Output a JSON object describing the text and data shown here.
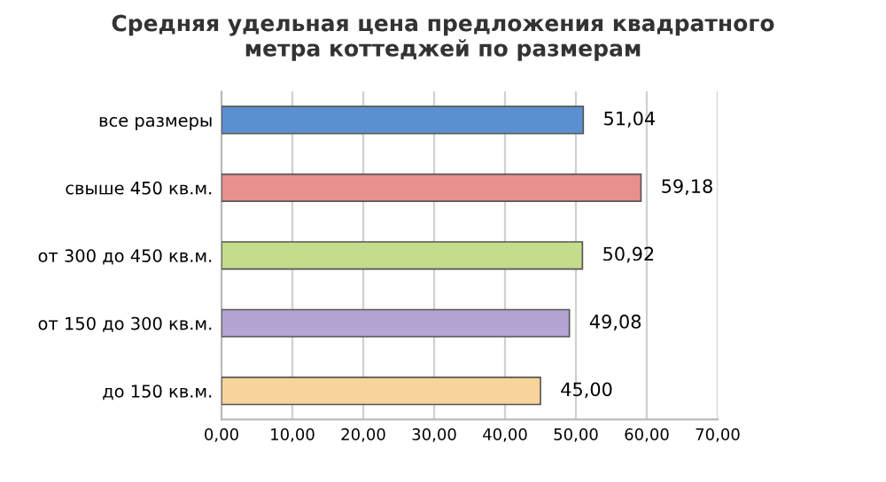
{
  "chart_data": {
    "type": "bar",
    "orientation": "horizontal",
    "title": "Средняя удельная цена предложения квадратного\nметра коттеджей по размерам",
    "categories": [
      "все размеры",
      "свыше 450 кв.м.",
      "от 300 до 450 кв.м.",
      "от 150 до 300 кв.м.",
      "до 150 кв.м."
    ],
    "values": [
      51.04,
      59.18,
      50.92,
      49.08,
      45.0
    ],
    "value_labels": [
      "51,04",
      "59,18",
      "50,92",
      "49,08",
      "45,00"
    ],
    "colors": [
      "#5b8fd0",
      "#e8908e",
      "#c4dc8c",
      "#b4a4d4",
      "#f8d49a"
    ],
    "xlim": [
      0,
      70
    ],
    "xticks": [
      {
        "value": 0,
        "label": "0,00"
      },
      {
        "value": 10,
        "label": "10,00"
      },
      {
        "value": 20,
        "label": "20,00"
      },
      {
        "value": 30,
        "label": "30,00"
      },
      {
        "value": 40,
        "label": "40,00"
      },
      {
        "value": 50,
        "label": "50,00"
      },
      {
        "value": 60,
        "label": "60,00"
      },
      {
        "value": 70,
        "label": "70,00"
      }
    ],
    "grid": "x"
  }
}
